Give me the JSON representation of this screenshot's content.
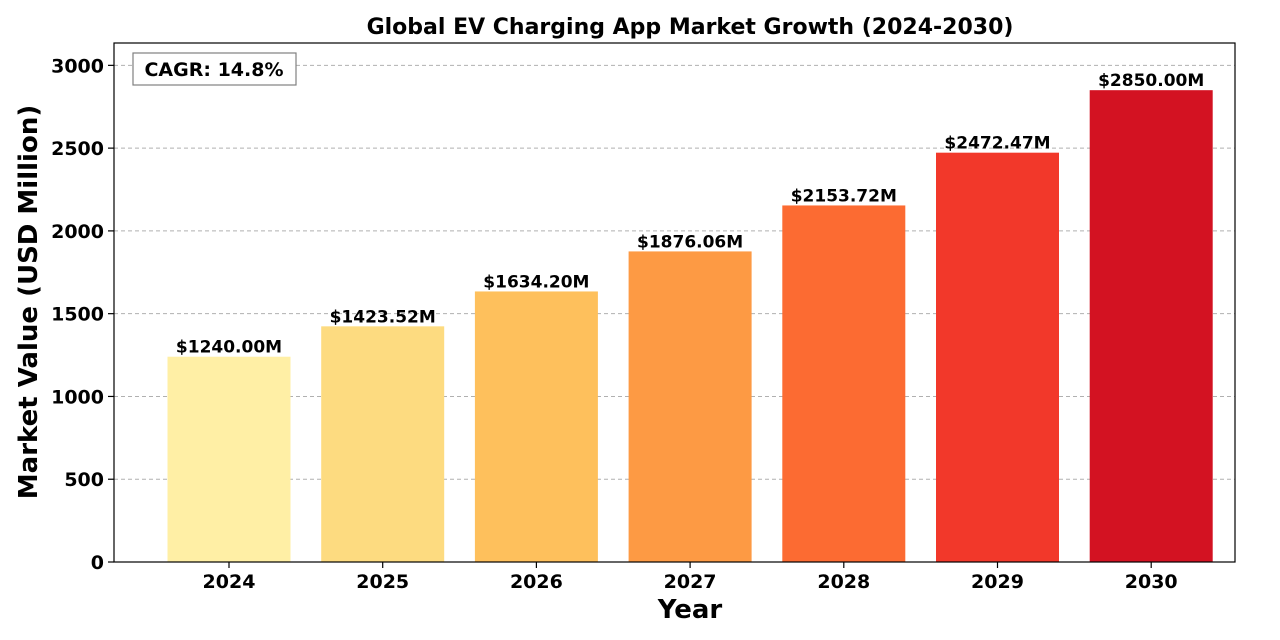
{
  "chart_data": {
    "type": "bar",
    "title": "Global EV Charging App Market Growth (2024-2030)",
    "xlabel": "Year",
    "ylabel": "Market Value (USD Million)",
    "categories": [
      "2024",
      "2025",
      "2026",
      "2027",
      "2028",
      "2029",
      "2030"
    ],
    "values": [
      1240.0,
      1423.52,
      1634.2,
      1876.06,
      2153.72,
      2472.47,
      2850.0
    ],
    "data_labels": [
      "$1240.00M",
      "$1423.52M",
      "$1634.20M",
      "$1876.06M",
      "$2153.72M",
      "$2472.47M",
      "$2850.00M"
    ],
    "colors": [
      "#ffefa5",
      "#fddb80",
      "#fec05c",
      "#fd9a44",
      "#fc6b32",
      "#f2382a",
      "#d31222"
    ],
    "ylim": [
      0,
      3135
    ],
    "yticks": [
      0,
      500,
      1000,
      1500,
      2000,
      2500,
      3000
    ],
    "grid": true,
    "annotation": "CAGR: 14.8%"
  }
}
